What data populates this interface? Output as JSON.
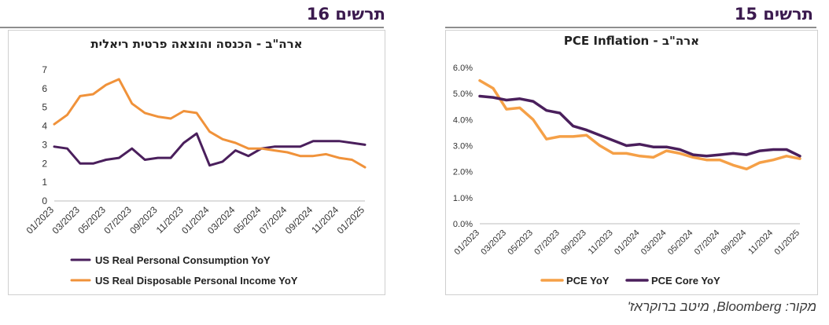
{
  "figures": {
    "left": {
      "header": "תרשים 16"
    },
    "right": {
      "header": "תרשים 15"
    }
  },
  "source": "מקור: Bloomberg, מיטב ברוקראז'",
  "chart_data": [
    {
      "type": "line",
      "title": "ארה\"ב - הכנסה והוצאה פרטית ריאלית",
      "xlabel": "",
      "ylabel": "",
      "x": [
        "01/2023",
        "02/2023",
        "03/2023",
        "04/2023",
        "05/2023",
        "06/2023",
        "07/2023",
        "08/2023",
        "09/2023",
        "10/2023",
        "11/2023",
        "12/2023",
        "01/2024",
        "02/2024",
        "03/2024",
        "04/2024",
        "05/2024",
        "06/2024",
        "07/2024",
        "08/2024",
        "09/2024",
        "10/2024",
        "11/2024",
        "12/2024",
        "01/2025"
      ],
      "x_tick_labels": [
        "01/2023",
        "03/2023",
        "05/2023",
        "07/2023",
        "09/2023",
        "11/2023",
        "01/2024",
        "03/2024",
        "05/2024",
        "07/2024",
        "09/2024",
        "11/2024",
        "01/2025"
      ],
      "ylim": [
        0,
        7
      ],
      "y_ticks": [
        "0",
        "1",
        "2",
        "3",
        "4",
        "5",
        "6",
        "7"
      ],
      "grid": false,
      "legend_position": "bottom",
      "series": [
        {
          "name": "US Real Personal Consumption YoY",
          "color": "#4a1f5c",
          "values": [
            2.9,
            2.8,
            2.0,
            2.0,
            2.2,
            2.3,
            2.8,
            2.2,
            2.3,
            2.3,
            3.1,
            3.6,
            1.9,
            2.1,
            2.7,
            2.4,
            2.8,
            2.9,
            2.9,
            2.9,
            3.2,
            3.2,
            3.2,
            3.1,
            3.0
          ]
        },
        {
          "name": "US Real Disposable Personal Income YoY",
          "color": "#f0923a",
          "values": [
            4.1,
            4.6,
            5.6,
            5.7,
            6.2,
            6.5,
            5.2,
            4.7,
            4.5,
            4.4,
            4.8,
            4.7,
            3.7,
            3.3,
            3.1,
            2.8,
            2.8,
            2.7,
            2.6,
            2.4,
            2.4,
            2.5,
            2.3,
            2.2,
            1.8
          ]
        }
      ]
    },
    {
      "type": "line",
      "title": "ארה\"ב - PCE Inflation",
      "xlabel": "",
      "ylabel": "",
      "x": [
        "01/2023",
        "02/2023",
        "03/2023",
        "04/2023",
        "05/2023",
        "06/2023",
        "07/2023",
        "08/2023",
        "09/2023",
        "10/2023",
        "11/2023",
        "12/2023",
        "01/2024",
        "02/2024",
        "03/2024",
        "04/2024",
        "05/2024",
        "06/2024",
        "07/2024",
        "08/2024",
        "09/2024",
        "10/2024",
        "11/2024",
        "12/2024",
        "01/2025"
      ],
      "x_tick_labels": [
        "01/2023",
        "03/2023",
        "05/2023",
        "07/2023",
        "09/2023",
        "11/2023",
        "01/2024",
        "03/2024",
        "05/2024",
        "07/2024",
        "09/2024",
        "11/2024",
        "01/2025"
      ],
      "ylim": [
        0,
        6
      ],
      "y_ticks": [
        "0.0%",
        "1.0%",
        "2.0%",
        "3.0%",
        "4.0%",
        "5.0%",
        "6.0%"
      ],
      "grid": false,
      "legend_position": "bottom",
      "series": [
        {
          "name": "PCE YoY",
          "color": "#f5a047",
          "values": [
            5.5,
            5.2,
            4.4,
            4.45,
            4.0,
            3.25,
            3.35,
            3.35,
            3.4,
            3.0,
            2.7,
            2.7,
            2.6,
            2.55,
            2.8,
            2.7,
            2.55,
            2.45,
            2.45,
            2.25,
            2.1,
            2.35,
            2.45,
            2.6,
            2.5
          ]
        },
        {
          "name": "PCE Core YoY",
          "color": "#4a1f5c",
          "values": [
            4.9,
            4.85,
            4.75,
            4.8,
            4.7,
            4.35,
            4.25,
            3.75,
            3.6,
            3.4,
            3.2,
            3.0,
            3.05,
            2.95,
            2.95,
            2.85,
            2.65,
            2.6,
            2.65,
            2.7,
            2.65,
            2.8,
            2.85,
            2.85,
            2.6
          ]
        }
      ]
    }
  ]
}
